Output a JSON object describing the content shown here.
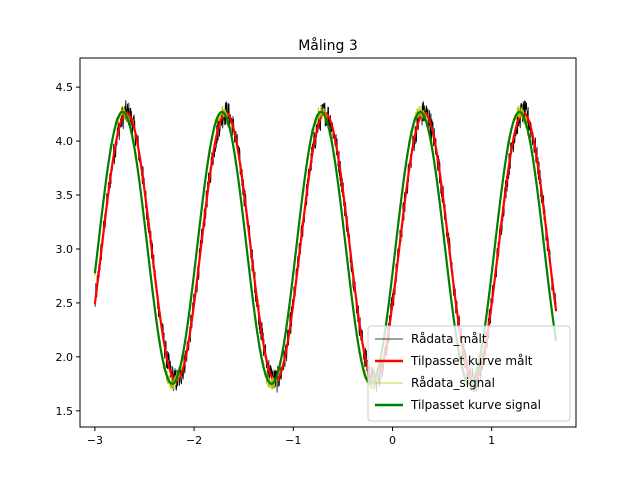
{
  "chart_data": {
    "type": "line",
    "title": "Måling 3",
    "xlabel": "",
    "ylabel": "",
    "xlim": [
      -3.15,
      1.85
    ],
    "ylim": [
      1.35,
      4.77
    ],
    "x_ticks": [
      -3,
      -2,
      -1,
      0,
      1
    ],
    "x_tick_labels": [
      "−3",
      "−2",
      "−1",
      "0",
      "1"
    ],
    "y_ticks": [
      1.5,
      2.0,
      2.5,
      3.0,
      3.5,
      4.0,
      4.5
    ],
    "y_tick_labels": [
      "1.5",
      "2.0",
      "2.5",
      "3.0",
      "3.5",
      "4.0",
      "4.5"
    ],
    "grid": false,
    "legend_position": "lower-right",
    "x_range": [
      -3.0,
      1.65
    ],
    "series": [
      {
        "name": "Rådata_målt",
        "color": "#000000",
        "style": "thin-noisy",
        "offset": 3.02,
        "amplitude": 1.24,
        "frequency": 1.0,
        "phase_peak_x": -2.68,
        "noise": 0.12
      },
      {
        "name": "Tilpasset kurve målt",
        "color": "#ff0000",
        "style": "thick",
        "offset": 3.02,
        "amplitude": 1.24,
        "frequency": 1.0,
        "phase_peak_x": -2.68,
        "noise": 0
      },
      {
        "name": "Rådata_signal",
        "color": "#bfbf00",
        "style": "thin-noisy",
        "offset": 3.01,
        "amplitude": 1.26,
        "frequency": 1.0,
        "phase_peak_x": -2.72,
        "noise": 0.06
      },
      {
        "name": "Tilpasset kurve signal",
        "color": "#008000",
        "style": "thick",
        "offset": 3.01,
        "amplitude": 1.26,
        "frequency": 1.0,
        "phase_peak_x": -2.72,
        "noise": 0
      }
    ]
  }
}
